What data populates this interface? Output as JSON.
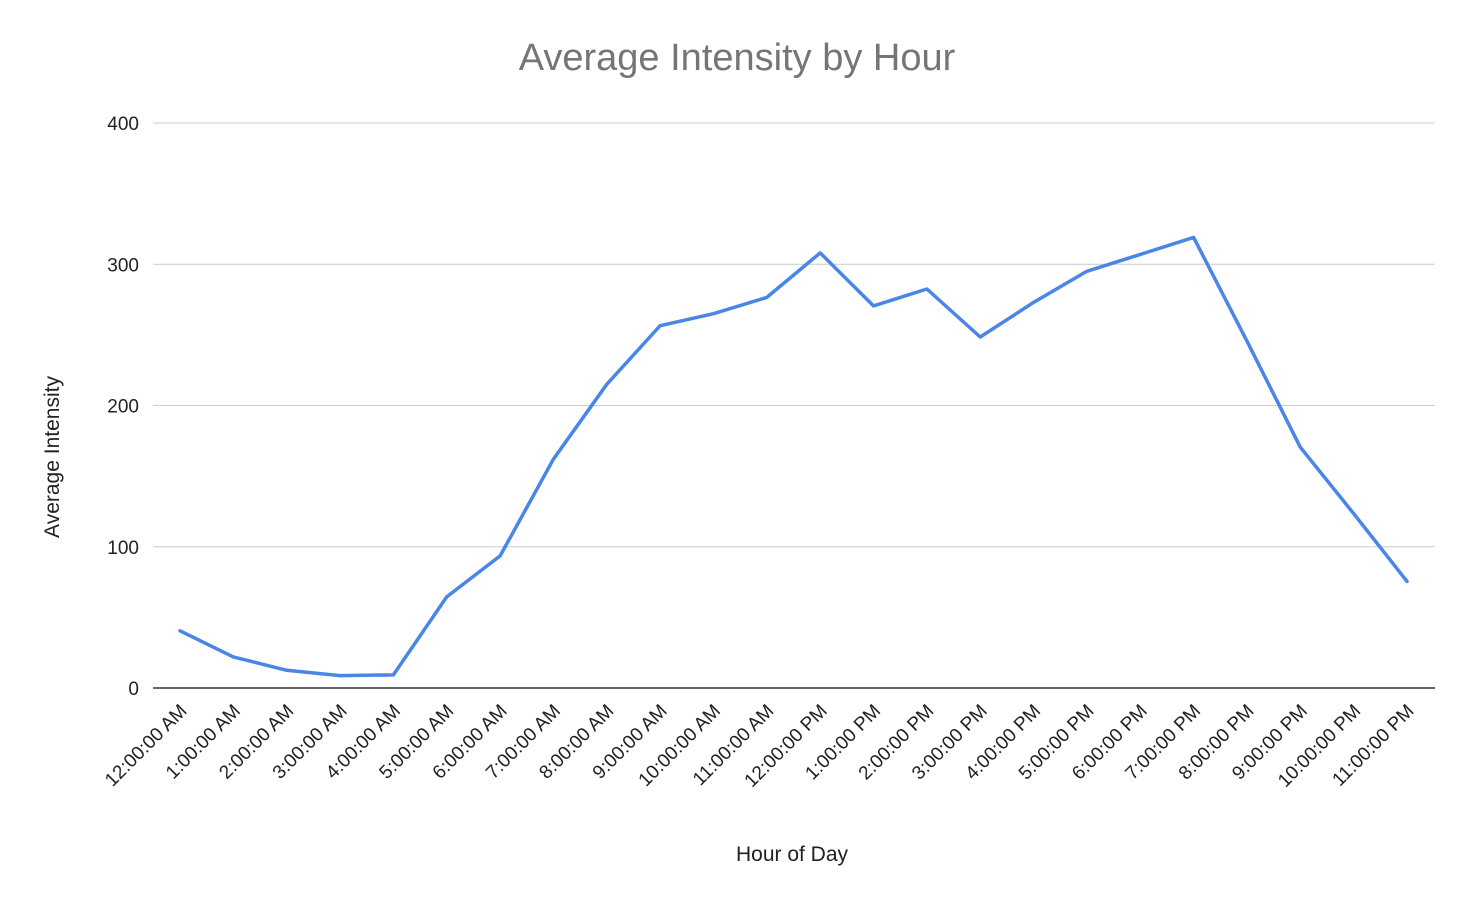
{
  "chart_data": {
    "type": "line",
    "title": "Average Intensity by Hour",
    "xlabel": "Hour of Day",
    "ylabel": "Average Intensity",
    "ylim": [
      0,
      400
    ],
    "yticks": [
      "0",
      "100",
      "200",
      "300",
      "400"
    ],
    "grid": true,
    "legend": "none",
    "line_color": "#4a86e8",
    "categories": [
      "12:00:00 AM",
      "1:00:00 AM",
      "2:00:00 AM",
      "3:00:00 AM",
      "4:00:00 AM",
      "5:00:00 AM",
      "6:00:00 AM",
      "7:00:00 AM",
      "8:00:00 AM",
      "9:00:00 AM",
      "10:00:00 AM",
      "11:00:00 AM",
      "12:00:00 PM",
      "1:00:00 PM",
      "2:00:00 PM",
      "3:00:00 PM",
      "4:00:00 PM",
      "5:00:00 PM",
      "6:00:00 PM",
      "7:00:00 PM",
      "8:00:00 PM",
      "9:00:00 PM",
      "10:00:00 PM",
      "11:00:00 PM"
    ],
    "series": [
      {
        "values": [
          40.5,
          22.0,
          12.5,
          8.8,
          9.3,
          64.5,
          93.5,
          162.0,
          215.0,
          256.5,
          265.0,
          276.5,
          308.0,
          270.5,
          282.5,
          248.5,
          273.0,
          295.0,
          307.0,
          319.0,
          245.5,
          170.5,
          123.5,
          75.5
        ]
      }
    ]
  }
}
